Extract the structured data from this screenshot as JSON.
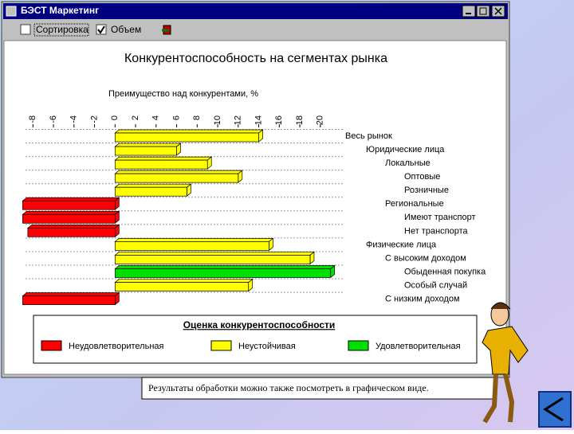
{
  "window": {
    "title": "БЭСТ Маркетинг",
    "checkboxes": [
      {
        "label": "Сортировка",
        "checked": false
      },
      {
        "label": "Объем",
        "checked": true
      }
    ]
  },
  "chart_data": {
    "type": "bar",
    "orientation": "horizontal",
    "title": "Конкурентоспособность на сегментах рынка",
    "x_label": "Преимущество над конкурентами, %",
    "categories": [
      "Весь рынок",
      "Юридические лица",
      "Локальные",
      "Оптовые",
      "Розничные",
      "Региональные",
      "Имеют транспорт",
      "Нет транспорта",
      "Физические лица",
      "С высоким доходом",
      "Обыденная покупка",
      "Особый случай",
      "С низким доходом"
    ],
    "values": [
      14,
      6,
      9,
      12,
      7,
      -9,
      -9,
      -8.5,
      15,
      19,
      21,
      13,
      -9
    ],
    "colors": [
      "#ffff00",
      "#ffff00",
      "#ffff00",
      "#ffff00",
      "#ffff00",
      "#ff0000",
      "#ff0000",
      "#ff0000",
      "#ffff00",
      "#ffff00",
      "#00e000",
      "#ffff00",
      "#ff0000"
    ],
    "xlim": [
      -9.5,
      22.5
    ],
    "xticks": [
      -8,
      -6,
      -4,
      -2,
      0,
      2,
      4,
      6,
      8,
      10,
      12,
      14,
      16,
      18,
      20
    ],
    "grid": true,
    "legend": {
      "title": "Оценка конкурентоспособности",
      "items": [
        {
          "name": "Неудовлетворительная",
          "color": "#ff0000"
        },
        {
          "name": "Неустойчивая",
          "color": "#ffff00"
        },
        {
          "name": "Удовлетворительная",
          "color": "#00e000"
        }
      ]
    }
  },
  "caption": "Результаты обработки можно также посмотреть в графическом виде."
}
